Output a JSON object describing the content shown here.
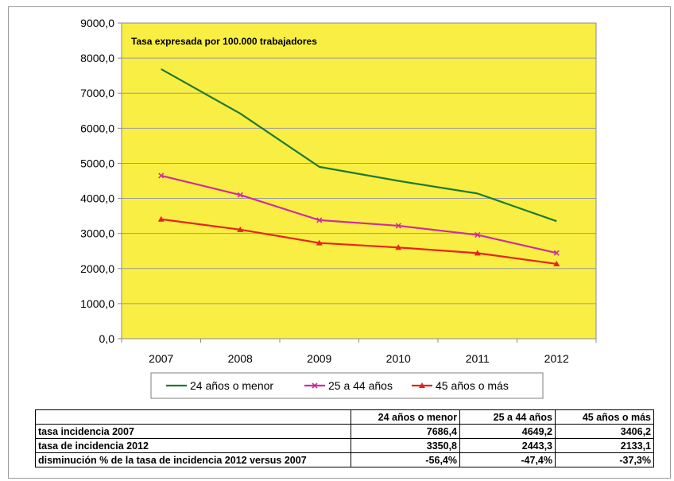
{
  "chart_data": {
    "type": "line",
    "annotation": "Tasa expresada por 100.000 trabajadores",
    "x": [
      "2007",
      "2008",
      "2009",
      "2010",
      "2011",
      "2012"
    ],
    "ylim": [
      0,
      9000
    ],
    "yticks": [
      "0,0",
      "1000,0",
      "2000,0",
      "3000,0",
      "4000,0",
      "5000,0",
      "6000,0",
      "7000,0",
      "8000,0",
      "9000,0"
    ],
    "grid": true,
    "legend_position": "bottom",
    "plot_background": "#f9ee44",
    "series": [
      {
        "name": "24 años o menor",
        "color": "#1e7a33",
        "marker": "none",
        "values": [
          7686.4,
          6420,
          4900,
          4500,
          4140,
          3350.8
        ]
      },
      {
        "name": "25 a 44 años",
        "color": "#cc2e9e",
        "marker": "x",
        "values": [
          4649.2,
          4100,
          3380,
          3220,
          2960,
          2443.3
        ]
      },
      {
        "name": "45 años o más",
        "color": "#e8231b",
        "marker": "triangle",
        "values": [
          3406.2,
          3110,
          2730,
          2600,
          2440,
          2133.1
        ]
      }
    ]
  },
  "table": {
    "header": [
      "",
      "24 años o menor",
      "25 a 44 años",
      "45 años o más"
    ],
    "rows": [
      {
        "label": "tasa incidencia 2007",
        "values": [
          "7686,4",
          "4649,2",
          "3406,2"
        ]
      },
      {
        "label": "tasa de incidencia 2012",
        "values": [
          "3350,8",
          "2443,3",
          "2133,1"
        ]
      },
      {
        "label": "disminución % de la tasa de incidencia 2012 versus 2007",
        "values": [
          "-56,4%",
          "-47,4%",
          "-37,3%"
        ]
      }
    ]
  }
}
